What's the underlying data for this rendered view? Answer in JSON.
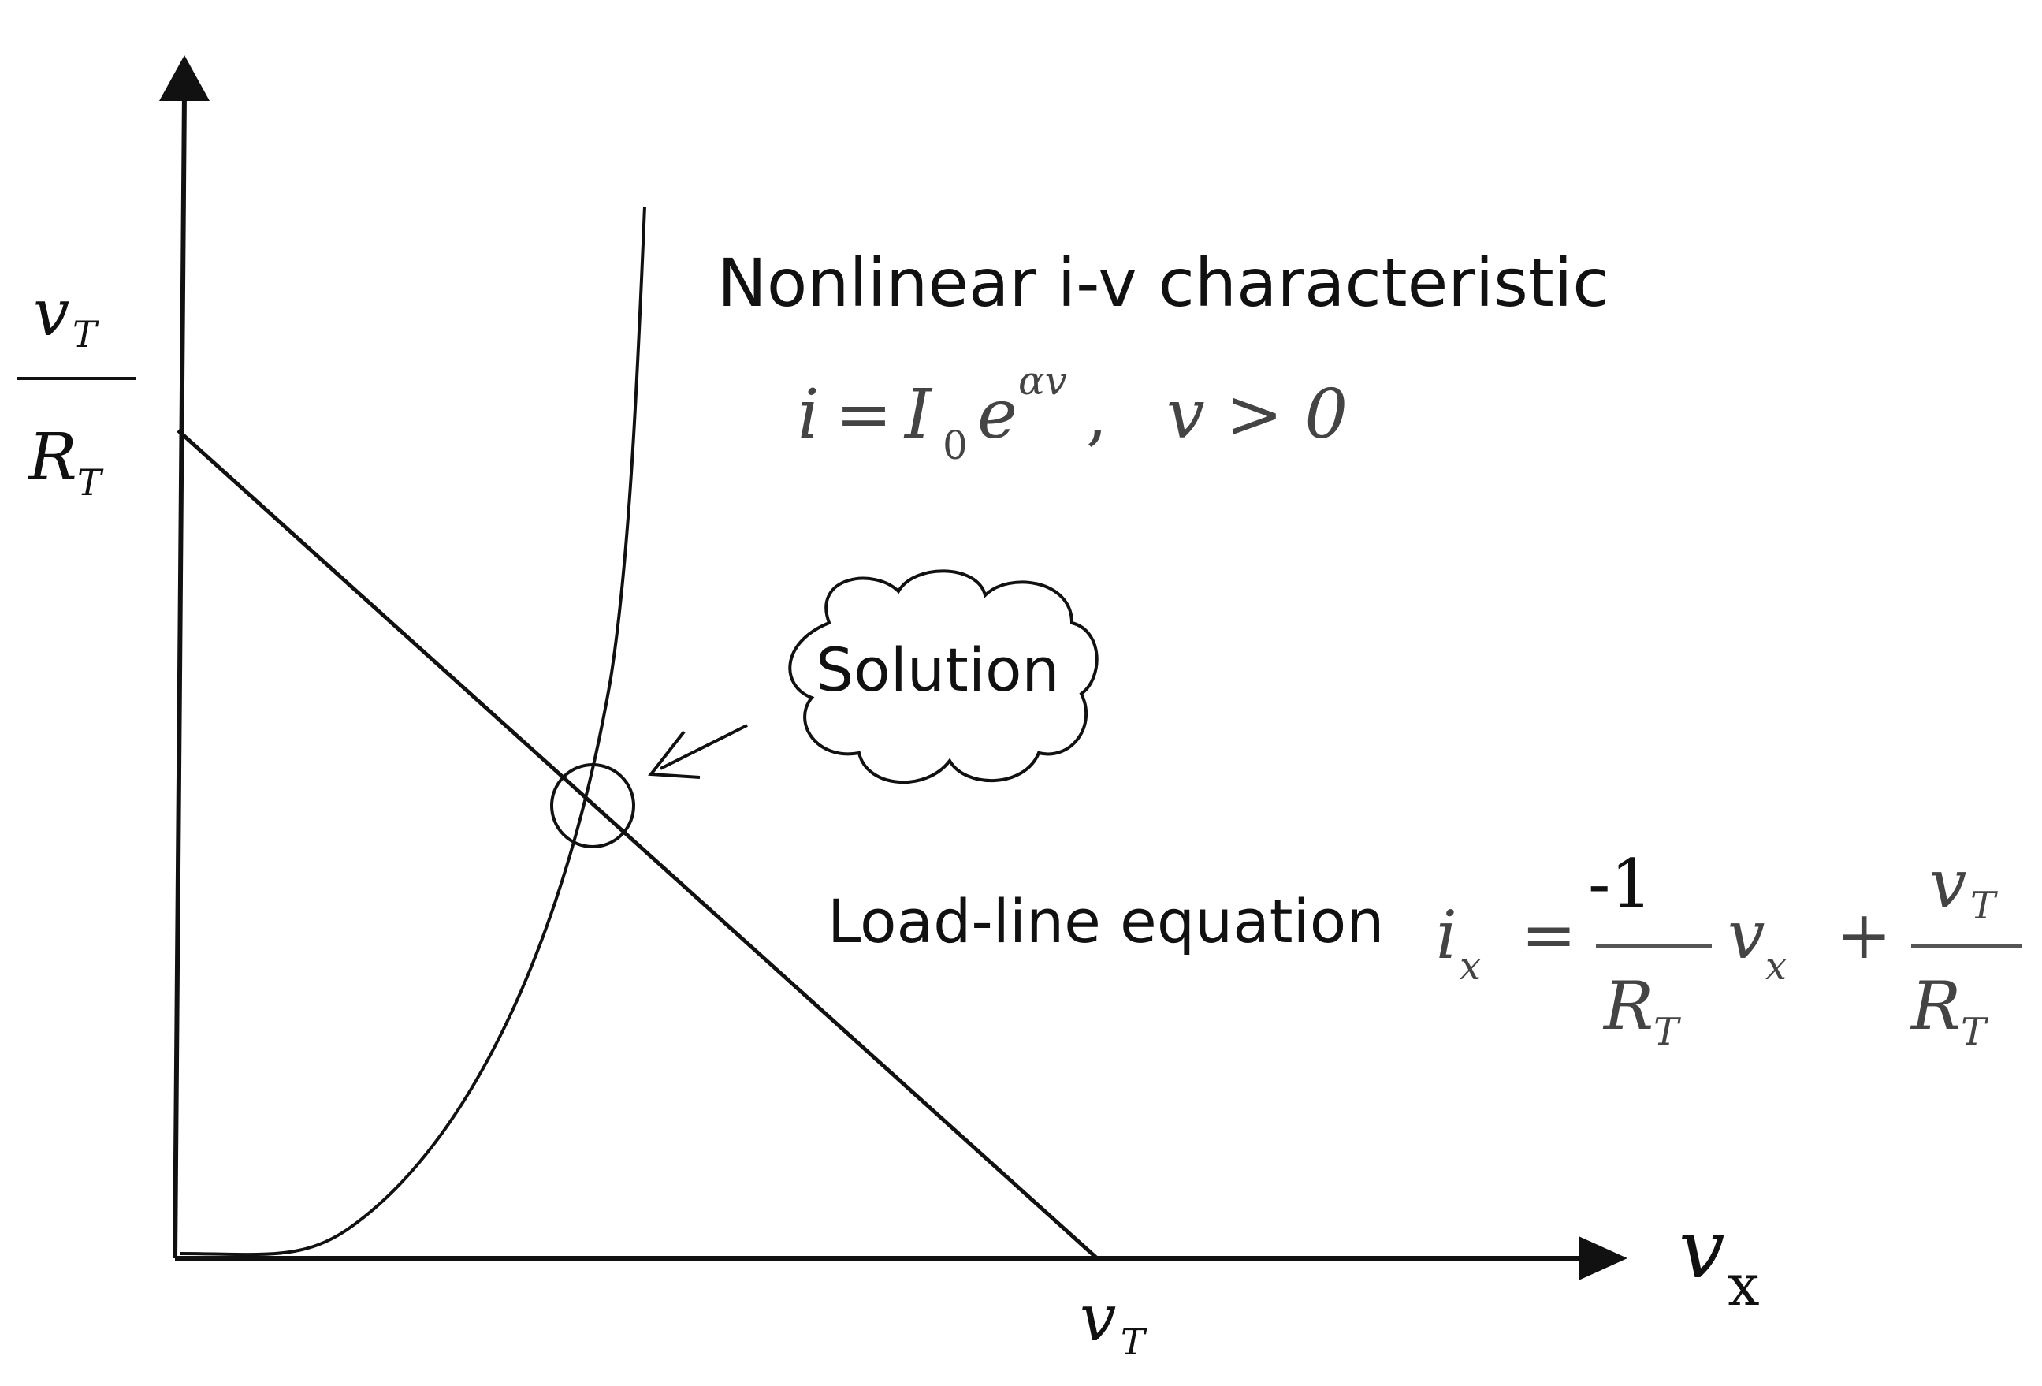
{
  "labels": {
    "y_top_num_var": "v",
    "y_top_num_sub": "T",
    "y_top_den_var": "R",
    "y_top_den_sub": "T",
    "x_intercept_var": "v",
    "x_intercept_sub": "T",
    "x_axis_var": "v",
    "x_axis_sub": "x",
    "nonlinear_title": "Nonlinear i-v characteristic",
    "solution": "Solution",
    "load_line_title": "Load-line equation"
  },
  "equations": {
    "nonlinear": {
      "lhs": "i",
      "eq": "=",
      "coef": "I",
      "coef_sub": "0",
      "base": "e",
      "exponent": "αv",
      "comma": ",",
      "condition": "v > 0"
    },
    "load_line": {
      "lhs": "i",
      "lhs_sub": "x",
      "eq": "=",
      "frac1_num": "-1",
      "frac1_den_var": "R",
      "frac1_den_sub": "T",
      "var": "v",
      "var_sub": "x",
      "plus": "+",
      "frac2_num_var": "v",
      "frac2_num_sub": "T",
      "frac2_den_var": "R",
      "frac2_den_sub": "T"
    }
  },
  "colors": {
    "stroke": "#111111",
    "background": "#ffffff"
  }
}
